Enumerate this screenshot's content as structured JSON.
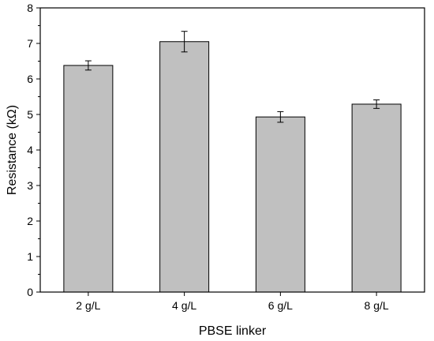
{
  "chart_data": {
    "type": "bar",
    "categories": [
      "2 g/L",
      "4 g/L",
      "6 g/L",
      "8 g/L"
    ],
    "values": [
      6.38,
      7.05,
      4.93,
      5.29
    ],
    "errors": [
      0.13,
      0.29,
      0.15,
      0.12
    ],
    "title": "",
    "xlabel": "PBSE linker",
    "ylabel": "Resistance (kΩ)",
    "ylim": [
      0,
      8
    ],
    "yticks": [
      "0",
      "1",
      "2",
      "3",
      "4",
      "5",
      "6",
      "7",
      "8"
    ],
    "grid": false,
    "bar_color": "#c0c0c0",
    "legend": "none"
  }
}
